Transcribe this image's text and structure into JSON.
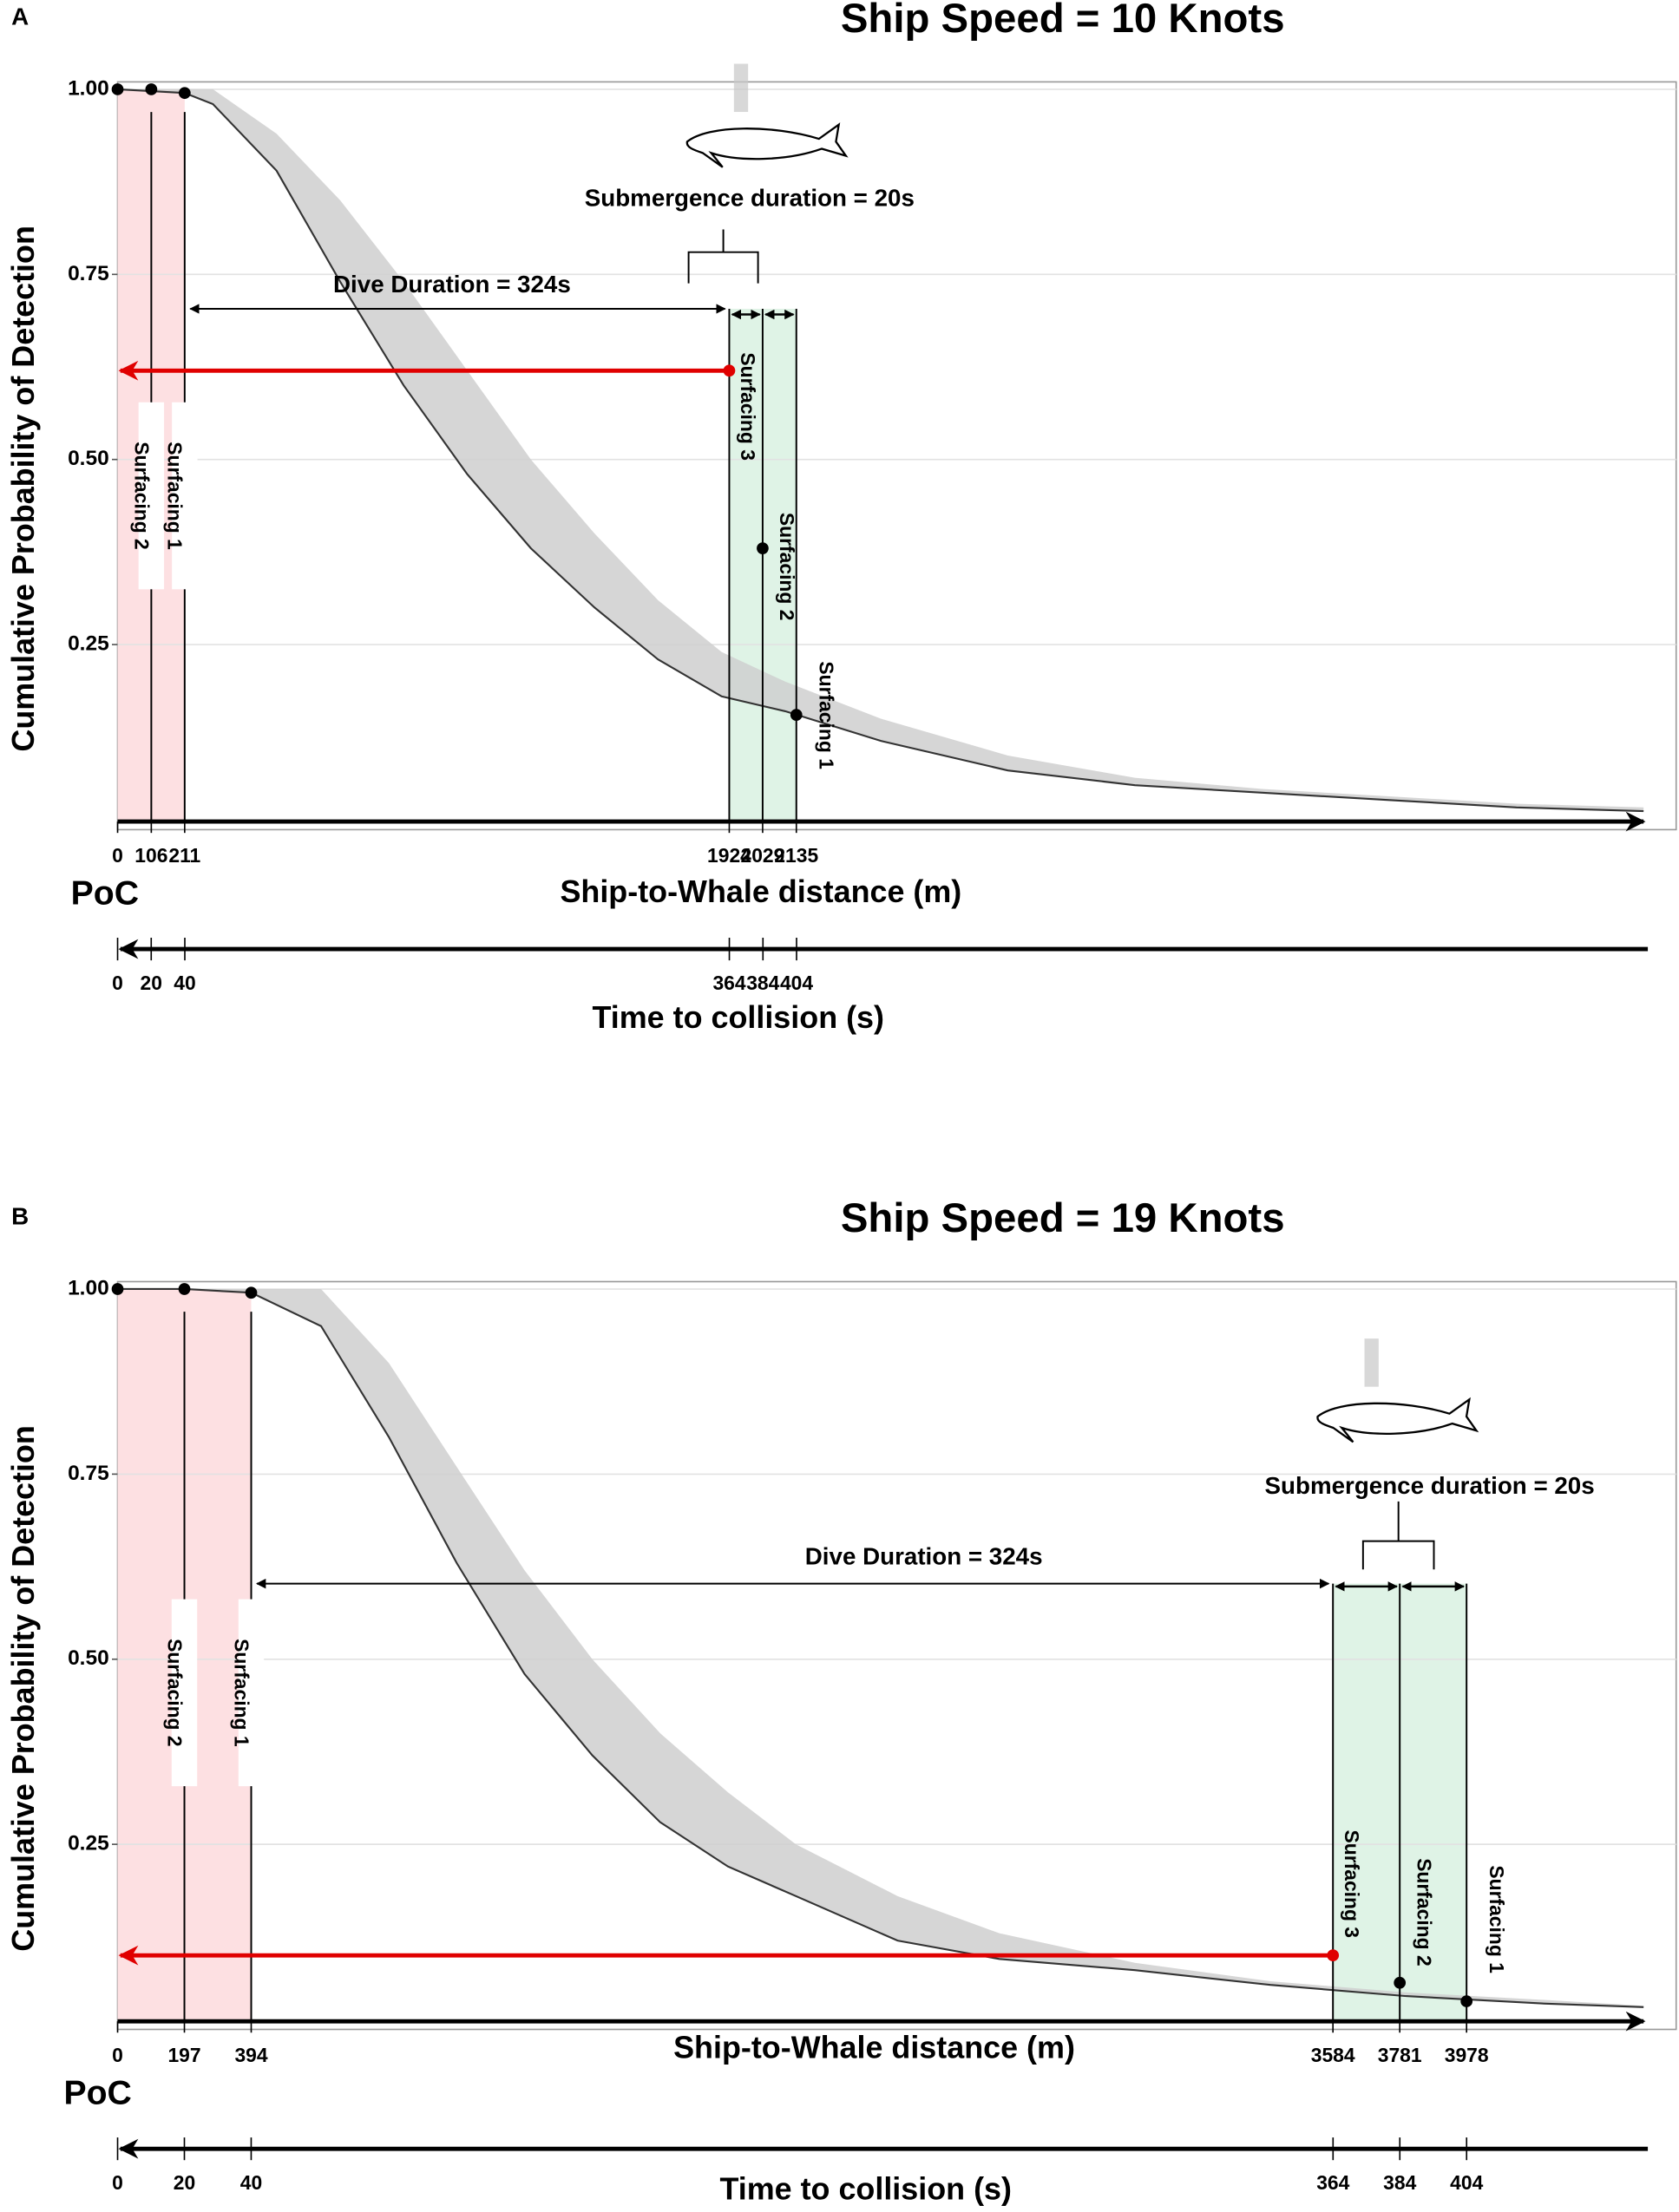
{
  "chart_data": [
    {
      "type": "line",
      "panel": "A",
      "title": "Ship Speed = 10 Knots",
      "y_label": "Cumulative Probability of Detection",
      "ylim": [
        0,
        1.01
      ],
      "yticks": [
        {
          "value": 1,
          "label": "1.00"
        },
        0.75,
        {
          "value": 0.5,
          "label": "0.50"
        },
        0.25
      ],
      "x_label": "Ship-to-Whale distance (m)",
      "xlim": [
        0,
        4800
      ],
      "xticks": [
        0,
        106,
        211,
        1924,
        2029,
        2135
      ],
      "time_label": "Time to collision (s)",
      "time_xlim": [
        0,
        908
      ],
      "time_ticks": [
        0,
        20,
        40,
        364,
        384,
        404
      ],
      "origin_label": "PoC",
      "dive_label": "Dive Duration = 324s",
      "submergence_label": "Submergence duration = 20s",
      "surfacing_labels": [
        "Surfacing 2",
        "Surfacing 1",
        "Surfacing 3",
        "Surfacing 2",
        "Surfacing 1"
      ],
      "curve": {
        "x": [
          0,
          211,
          300,
          500,
          700,
          900,
          1100,
          1300,
          1500,
          1700,
          1900,
          2100,
          2400,
          2800,
          3200,
          3600,
          4000,
          4400,
          4800
        ],
        "values": [
          1,
          0.995,
          0.98,
          0.89,
          0.74,
          0.6,
          0.48,
          0.38,
          0.3,
          0.23,
          0.18,
          0.16,
          0.12,
          0.08,
          0.06,
          0.05,
          0.04,
          0.03,
          0.025
        ],
        "upper": [
          1,
          1,
          1,
          0.94,
          0.85,
          0.74,
          0.62,
          0.5,
          0.4,
          0.31,
          0.24,
          0.2,
          0.15,
          0.1,
          0.07,
          0.055,
          0.045,
          0.035,
          0.03
        ]
      },
      "points": {
        "x": [
          0,
          106,
          211,
          1924,
          2029,
          2135
        ],
        "values": [
          1,
          1,
          0.995,
          0.62,
          0.38,
          0.155
        ],
        "colors": [
          "#000000",
          "#000000",
          "#000000",
          "#e00000",
          "#000000",
          "#000000"
        ]
      },
      "colors": {
        "curve": "#333333",
        "band": "#cfcfcf",
        "near": "#fde0e2",
        "far": "#dff3e6",
        "arrow": "#e00000"
      }
    },
    {
      "type": "line",
      "panel": "B",
      "title": "Ship Speed = 19 Knots",
      "y_label": "Cumulative Probability of Detection",
      "ylim": [
        0,
        1.01
      ],
      "yticks": [
        {
          "value": 1,
          "label": "1.00"
        },
        0.75,
        {
          "value": 0.5,
          "label": "0.50"
        },
        0.25
      ],
      "x_label": "Ship-to-Whale distance (m)",
      "xlim": [
        0,
        4500
      ],
      "xticks": [
        0,
        197,
        394,
        3584,
        3781,
        3978
      ],
      "time_label": "Time to collision (s)",
      "time_xlim": [
        0,
        457
      ],
      "time_ticks": [
        0,
        20,
        40,
        364,
        384,
        404
      ],
      "origin_label": "PoC",
      "dive_label": "Dive Duration = 324s",
      "submergence_label": "Submergence duration = 20s",
      "surfacing_labels": [
        "Surfacing 2",
        "Surfacing 1",
        "Surfacing 3",
        "Surfacing 2",
        "Surfacing 1"
      ],
      "curve": {
        "x": [
          0,
          197,
          394,
          600,
          800,
          1000,
          1200,
          1400,
          1600,
          1800,
          2000,
          2300,
          2600,
          3000,
          3400,
          3800,
          4200,
          4500
        ],
        "values": [
          1,
          1,
          0.995,
          0.95,
          0.8,
          0.63,
          0.48,
          0.37,
          0.28,
          0.22,
          0.18,
          0.12,
          0.095,
          0.08,
          0.06,
          0.045,
          0.035,
          0.03
        ],
        "upper": [
          1,
          1,
          1,
          1,
          0.9,
          0.76,
          0.62,
          0.5,
          0.4,
          0.32,
          0.25,
          0.18,
          0.13,
          0.09,
          0.065,
          0.05,
          0.04,
          0.032
        ]
      },
      "points": {
        "x": [
          0,
          197,
          394,
          3584,
          3781,
          3978
        ],
        "values": [
          1,
          1,
          0.995,
          0.1,
          0.063,
          0.038
        ],
        "colors": [
          "#000000",
          "#000000",
          "#000000",
          "#e00000",
          "#000000",
          "#000000"
        ]
      },
      "colors": {
        "curve": "#333333",
        "band": "#cfcfcf",
        "near": "#fde0e2",
        "far": "#dff3e6",
        "arrow": "#e00000"
      }
    }
  ]
}
